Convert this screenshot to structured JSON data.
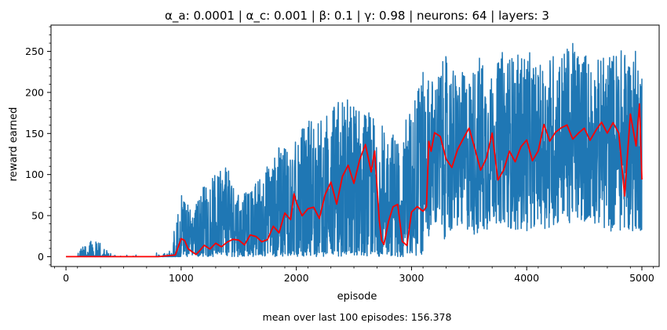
{
  "chart_data": {
    "type": "line",
    "title": "α_a: 0.0001 | α_c: 0.001 | β: 0.1 | γ: 0.98 | neurons: 64 | layers: 3",
    "xlabel": "episode",
    "ylabel": "reward earned",
    "footnote": "mean over last 100 episodes: 156.378",
    "xlim": [
      -130,
      5150
    ],
    "ylim": [
      -12,
      282
    ],
    "x_ticks": [
      0,
      1000,
      2000,
      3000,
      4000,
      5000
    ],
    "y_ticks": [
      0,
      50,
      100,
      150,
      200,
      250
    ],
    "x_tick_labels": [
      "0",
      "1000",
      "2000",
      "3000",
      "4000",
      "5000"
    ],
    "y_tick_labels": [
      "0",
      "50",
      "100",
      "150",
      "200",
      "250"
    ],
    "grid": false,
    "minor_ticks": true,
    "series": [
      {
        "role": "episode_reward",
        "color": "#1f77b4",
        "envelope": {
          "x": [
            0,
            100,
            200,
            300,
            400,
            500,
            600,
            700,
            800,
            900,
            1000,
            1100,
            1200,
            1300,
            1400,
            1500,
            1600,
            1700,
            1800,
            1900,
            2000,
            2100,
            2200,
            2300,
            2400,
            2500,
            2600,
            2700,
            2800,
            2900,
            3000,
            3100,
            3200,
            3300,
            3400,
            3500,
            3600,
            3700,
            3800,
            3900,
            4000,
            4100,
            4200,
            4300,
            4400,
            4500,
            4600,
            4700,
            4800,
            4900,
            5000
          ],
          "low": [
            0,
            0,
            0,
            0,
            0,
            0,
            0,
            0,
            0,
            0,
            0,
            0,
            0,
            0,
            0,
            0,
            0,
            0,
            0,
            0,
            0,
            0,
            0,
            0,
            0,
            0,
            0,
            0,
            0,
            0,
            0,
            20,
            30,
            20,
            30,
            30,
            20,
            40,
            40,
            30,
            30,
            40,
            30,
            40,
            40,
            40,
            40,
            30,
            30,
            30,
            30
          ],
          "high": [
            0,
            5,
            20,
            18,
            2,
            2,
            2,
            2,
            5,
            10,
            80,
            55,
            90,
            100,
            110,
            75,
            80,
            105,
            120,
            150,
            140,
            175,
            170,
            180,
            200,
            190,
            180,
            170,
            155,
            150,
            190,
            225,
            220,
            245,
            225,
            225,
            250,
            220,
            255,
            245,
            255,
            230,
            250,
            255,
            260,
            255,
            240,
            250,
            255,
            255,
            250
          ]
        }
      },
      {
        "role": "moving_average_100",
        "color": "#ff0000",
        "x": [
          0,
          200,
          400,
          600,
          800,
          950,
          1000,
          1030,
          1060,
          1100,
          1130,
          1160,
          1200,
          1250,
          1300,
          1350,
          1400,
          1450,
          1500,
          1550,
          1600,
          1650,
          1700,
          1750,
          1800,
          1850,
          1900,
          1950,
          1980,
          2000,
          2050,
          2100,
          2150,
          2200,
          2250,
          2300,
          2350,
          2400,
          2450,
          2500,
          2550,
          2600,
          2650,
          2680,
          2700,
          2720,
          2740,
          2760,
          2800,
          2840,
          2880,
          2920,
          2960,
          3000,
          3050,
          3100,
          3130,
          3150,
          3170,
          3200,
          3250,
          3300,
          3350,
          3400,
          3450,
          3500,
          3550,
          3600,
          3650,
          3700,
          3750,
          3800,
          3850,
          3900,
          3950,
          4000,
          4050,
          4100,
          4150,
          4200,
          4250,
          4300,
          4350,
          4400,
          4450,
          4500,
          4550,
          4600,
          4650,
          4700,
          4750,
          4800,
          4850,
          4900,
          4950,
          4980,
          5000
        ],
        "y": [
          0,
          0,
          0,
          0,
          0,
          2,
          22,
          18,
          10,
          5,
          2,
          6,
          12,
          10,
          15,
          12,
          18,
          20,
          22,
          15,
          28,
          25,
          18,
          22,
          38,
          28,
          55,
          45,
          75,
          68,
          48,
          58,
          62,
          48,
          75,
          92,
          65,
          98,
          110,
          88,
          120,
          135,
          105,
          130,
          85,
          45,
          20,
          15,
          42,
          60,
          62,
          18,
          12,
          55,
          62,
          55,
          60,
          140,
          130,
          150,
          145,
          120,
          110,
          130,
          145,
          155,
          130,
          105,
          120,
          150,
          95,
          105,
          130,
          115,
          135,
          142,
          118,
          130,
          160,
          140,
          150,
          155,
          160,
          145,
          152,
          158,
          140,
          155,
          162,
          150,
          165,
          150,
          75,
          172,
          135,
          185,
          95
        ]
      }
    ]
  }
}
